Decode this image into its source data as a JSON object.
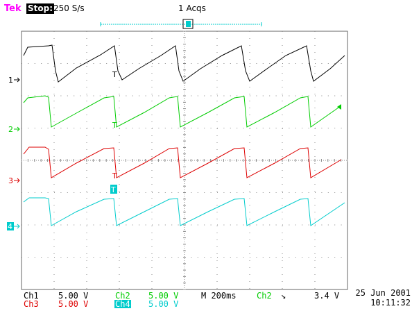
{
  "header": {
    "brand": "Tek",
    "run_state": "Stop:",
    "sample_rate": "250 S/s",
    "acquisitions": "1 Acqs"
  },
  "colors": {
    "brand": "#ff00ff",
    "ch1": "#000000",
    "ch2": "#00cc00",
    "ch3": "#dd0000",
    "ch4": "#00cccc",
    "grid": "#777777",
    "trigger_bar": "#00cccc"
  },
  "trigger_marker": "T",
  "channels": [
    {
      "id": "ch1",
      "marker": "1",
      "color": "#000000",
      "scale_label": "Ch1",
      "scale_value": "5.00 V"
    },
    {
      "id": "ch2",
      "marker": "2",
      "color": "#00cc00",
      "scale_label": "Ch2",
      "scale_value": "5.00 V"
    },
    {
      "id": "ch3",
      "marker": "3",
      "color": "#dd0000",
      "scale_label": "Ch3",
      "scale_value": "5.00 V"
    },
    {
      "id": "ch4",
      "marker": "4",
      "color": "#00cccc",
      "scale_label": "Ch4",
      "scale_value": "5.00 V"
    }
  ],
  "readout": {
    "ch1_label": "Ch1",
    "ch1_value": "5.00 V",
    "ch3_label": "Ch3",
    "ch3_value": "5.00 V",
    "ch2_label": "Ch2",
    "ch2_value": "5.00 V",
    "ch4_label": "Ch4",
    "ch4_value": "5.00 V",
    "timebase": "M 200ms",
    "trigger_source": "Ch2",
    "trigger_slope": "↘",
    "trigger_level": "3.4 V"
  },
  "timestamp": {
    "date": "25 Jun 2001",
    "time": "10:11:32"
  }
}
